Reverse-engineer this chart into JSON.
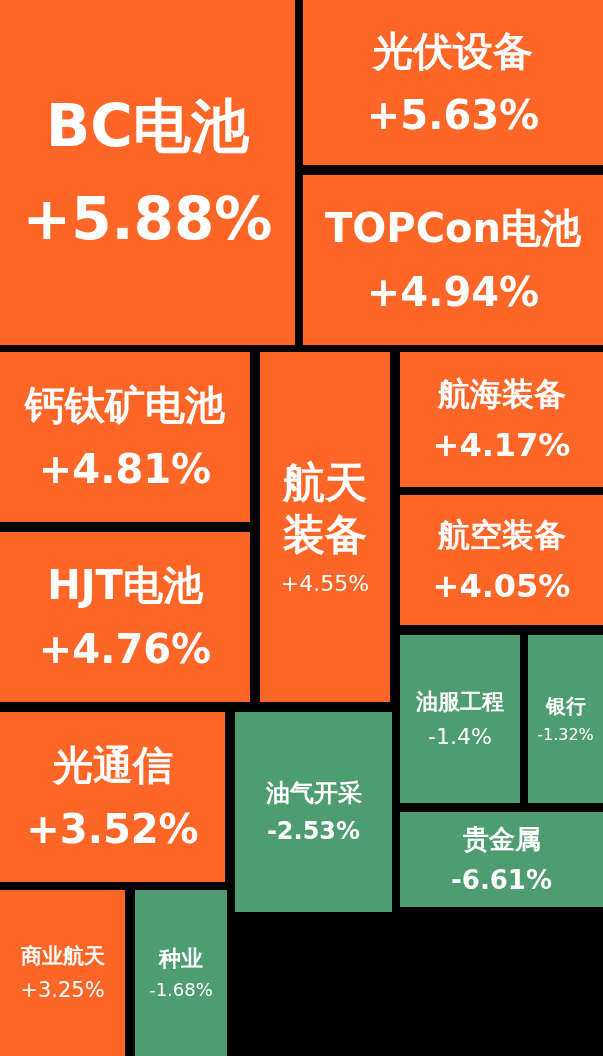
{
  "chart_data": {
    "type": "other",
    "categories": [
      "BC电池",
      "光伏设备",
      "TOPCon电池",
      "钙钛矿电池",
      "航天装备",
      "航海装备",
      "HJT电池",
      "航空装备",
      "油服工程",
      "银行",
      "光通信",
      "油气开采",
      "贵金属",
      "商业航天",
      "种业"
    ],
    "values": [
      5.88,
      5.63,
      4.94,
      4.81,
      4.55,
      4.17,
      4.76,
      4.05,
      -1.4,
      -1.32,
      3.52,
      -2.53,
      -6.61,
      3.25,
      -1.68
    ],
    "value_labels": [
      "+5.88%",
      "+5.63%",
      "+4.94%",
      "+4.81%",
      "+4.55%",
      "+4.17%",
      "+4.76%",
      "+4.05%",
      "-1.4%",
      "-1.32%",
      "+3.52%",
      "-2.53%",
      "-6.61%",
      "+3.25%",
      "-1.68%"
    ],
    "colors": [
      "#fe6627",
      "#fe6627",
      "#fe6627",
      "#fe6627",
      "#fe6627",
      "#fe6627",
      "#fe6627",
      "#fe6627",
      "#4e9d70",
      "#4e9d70",
      "#fe6627",
      "#4e9d70",
      "#4e9d70",
      "#fe6627",
      "#4e9d70"
    ]
  }
}
